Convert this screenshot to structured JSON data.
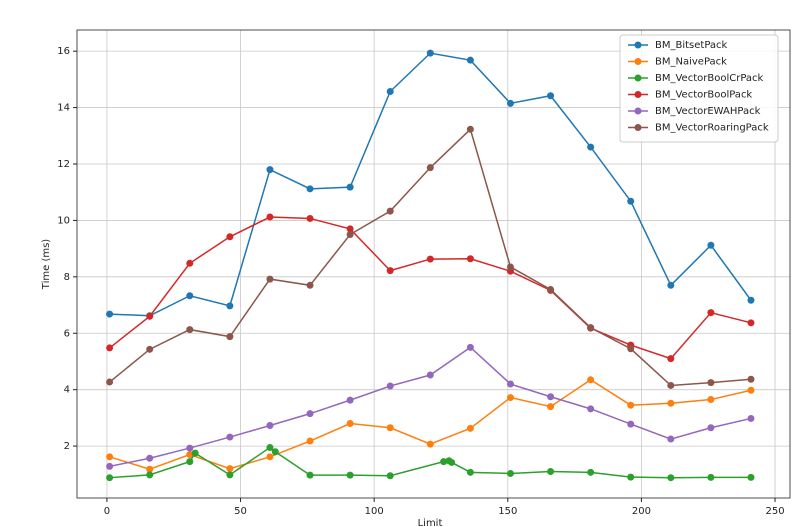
{
  "chart_data": {
    "type": "line",
    "x_label": "Limit",
    "y_label": "Time (ms)",
    "x": [
      1,
      16,
      31,
      46,
      61,
      76,
      91,
      106,
      121,
      136,
      151,
      166,
      181,
      196,
      211,
      226,
      241
    ],
    "series": [
      {
        "name": "BM_BitsetPack",
        "color": "#1f77b4",
        "values": [
          6.68,
          6.62,
          7.33,
          6.97,
          11.8,
          11.12,
          11.18,
          14.57,
          15.93,
          15.68,
          14.15,
          14.42,
          12.6,
          10.68,
          7.7,
          9.12,
          7.17
        ]
      },
      {
        "name": "BM_NaivePack",
        "color": "#ff7f0e",
        "values": [
          1.62,
          1.18,
          1.7,
          1.2,
          1.62,
          2.18,
          2.8,
          2.65,
          2.07,
          2.63,
          3.72,
          3.4,
          4.35,
          3.45,
          3.52,
          3.65,
          3.98
        ]
      },
      {
        "name": "BM_VectorBoolCrPack",
        "color": "#2ca02c",
        "x": [
          1,
          16,
          31,
          33,
          46,
          61,
          63,
          76,
          91,
          106,
          126,
          128,
          129,
          136,
          151,
          166,
          181,
          196,
          211,
          226,
          241
        ],
        "values": [
          0.88,
          0.98,
          1.45,
          1.75,
          0.98,
          1.95,
          1.8,
          0.97,
          0.97,
          0.95,
          1.45,
          1.48,
          1.42,
          1.07,
          1.03,
          1.1,
          1.07,
          0.9,
          0.88,
          0.89,
          0.89
        ]
      },
      {
        "name": "BM_VectorBoolPack",
        "color": "#d62728",
        "values": [
          5.48,
          6.6,
          8.48,
          9.42,
          10.12,
          10.07,
          9.7,
          8.22,
          8.63,
          8.64,
          8.2,
          7.52,
          6.18,
          5.58,
          5.1,
          6.73,
          6.37
        ]
      },
      {
        "name": "BM_VectorEWAHPack",
        "color": "#9467bd",
        "values": [
          1.28,
          1.57,
          1.93,
          2.32,
          2.73,
          3.15,
          3.63,
          4.13,
          4.52,
          5.5,
          4.2,
          3.75,
          3.32,
          2.78,
          2.25,
          2.65,
          2.98
        ]
      },
      {
        "name": "BM_VectorRoaringPack",
        "color": "#8c564b",
        "values": [
          4.27,
          5.43,
          6.13,
          5.88,
          7.92,
          7.7,
          9.5,
          10.33,
          11.87,
          13.23,
          8.35,
          7.55,
          6.2,
          5.45,
          4.15,
          4.25,
          4.37
        ]
      }
    ],
    "xlim": [
      -11.2,
      255.6
    ],
    "xticks": [
      0,
      50,
      100,
      150,
      200,
      250
    ],
    "ylim": [
      0.16,
      16.75
    ],
    "yticks": [
      2,
      4,
      6,
      8,
      10,
      12,
      14,
      16
    ],
    "grid": true,
    "legend": "upper right"
  }
}
